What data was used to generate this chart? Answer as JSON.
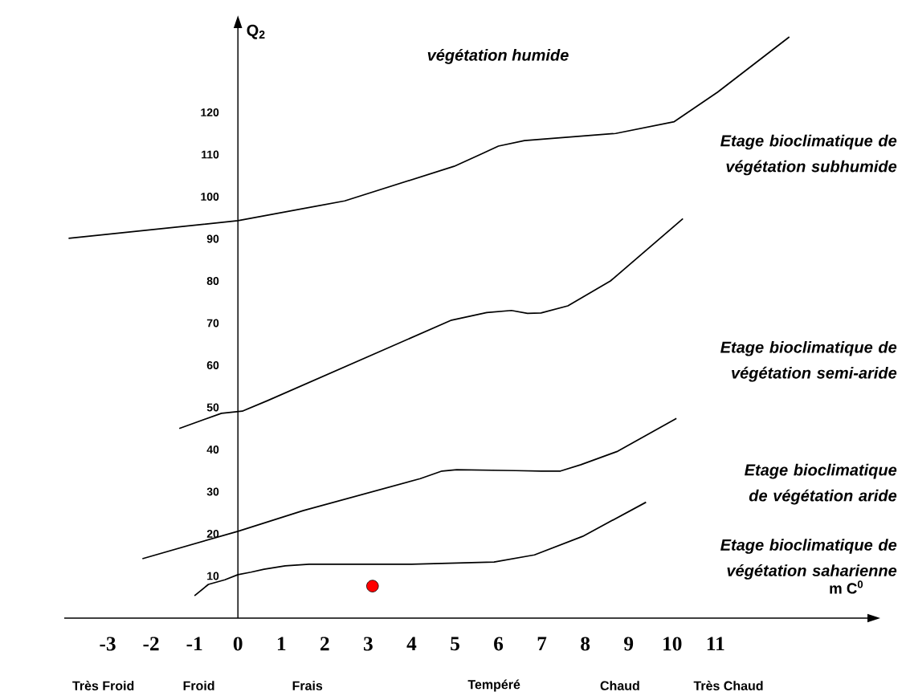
{
  "chart_data": {
    "type": "line",
    "xlabel": "m C$^{0}$",
    "ylabel": "Q$_{2}$",
    "xlim": [
      -4,
      14.5
    ],
    "ylim": [
      0,
      140
    ],
    "xticks": [
      -3,
      -2,
      -1,
      0,
      1,
      2,
      3,
      4,
      5,
      6,
      7,
      8,
      9,
      10,
      11
    ],
    "yticks": [
      10,
      20,
      30,
      40,
      50,
      60,
      70,
      80,
      90,
      100,
      110,
      120
    ],
    "series": [
      {
        "color": "#000000",
        "x": [
          -3.9,
          0,
          2.46,
          4.98,
          5.58,
          6.0,
          6.6,
          8.7,
          10.05,
          11.05,
          12.7
        ],
        "values": [
          90.1,
          94.3,
          99,
          107.2,
          110,
          112,
          113.3,
          115,
          117.8,
          124.8,
          137.9
        ]
      },
      {
        "color": "#000000",
        "x": [
          -1.35,
          -0.38,
          0.1,
          0.68,
          4.92,
          5.73,
          6.3,
          6.67,
          6.98,
          7.6,
          8.58,
          10.25
        ],
        "values": [
          45,
          48.6,
          49.1,
          51.6,
          70.7,
          72.5,
          73,
          72.3,
          72.4,
          74.1,
          80,
          94.8
        ]
      },
      {
        "color": "#000000",
        "x": [
          -2.2,
          0,
          1.5,
          4.2,
          4.7,
          5.04,
          6.4,
          6.98,
          7.43,
          7.9,
          8.75,
          10.1
        ],
        "values": [
          14.1,
          20.6,
          25.5,
          33.1,
          34.9,
          35.2,
          35,
          34.9,
          34.9,
          36.4,
          39.6,
          47.4
        ]
      },
      {
        "color": "#000000",
        "x": [
          -1.0,
          -0.68,
          -0.3,
          0,
          0.3,
          0.6,
          1.09,
          1.64,
          4,
          5.9,
          6.83,
          7.94,
          9.4
        ],
        "values": [
          5.3,
          8,
          9.1,
          10.3,
          10.9,
          11.6,
          12.4,
          12.8,
          12.8,
          13.3,
          15.0,
          19.4,
          27.5
        ]
      },
      {
        "type": "scatter",
        "color": "#ff0000",
        "marker": "circle",
        "x": [
          3.1
        ],
        "values": [
          7.6
        ]
      }
    ],
    "annotations": [
      "végétation humide",
      "Etage bioclimatique de végétation subhumide",
      "Etage bioclimatique de végétation semi-aride",
      "Etage bioclimatique de végétation aride",
      "Etage *bioclimatique de végétation saharienne*",
      "Très Froid",
      "Froid",
      "Frais",
      "Tempéré",
      "Chaud",
      "Très Chaud"
    ]
  }
}
